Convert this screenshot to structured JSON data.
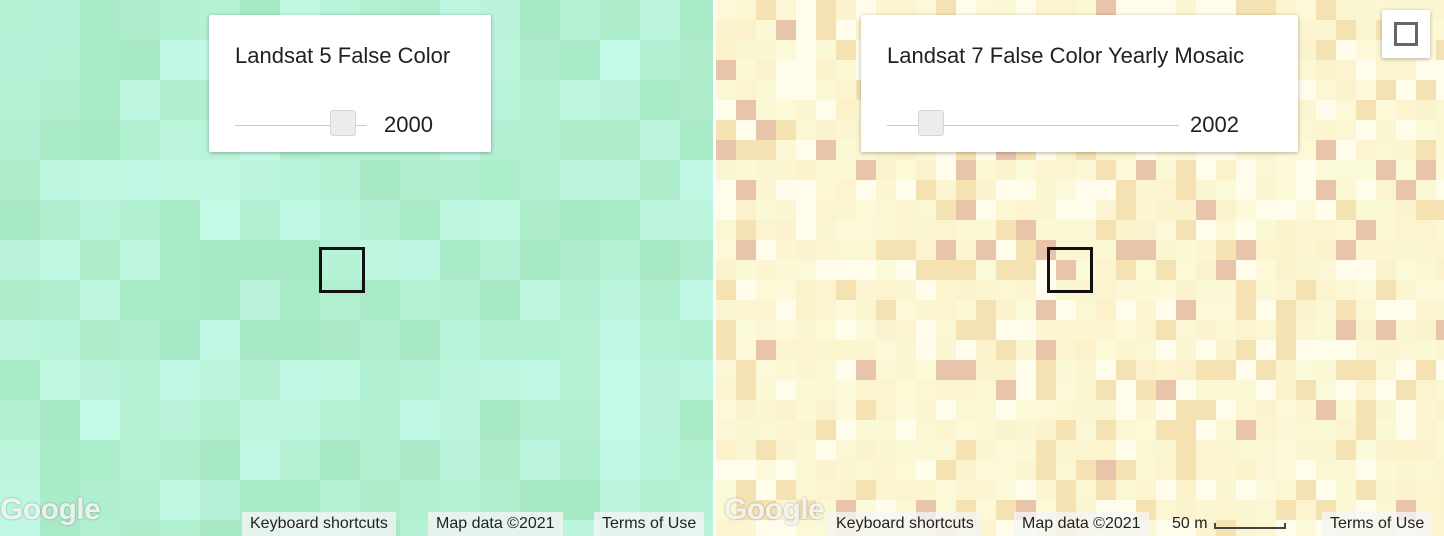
{
  "left_map": {
    "panel_title": "Landsat 5 False Color",
    "slider_value": "2000",
    "slider_fraction": 0.82,
    "base_color": "#b5f2d2",
    "google_logo": "Google",
    "attribution": {
      "keyboard_shortcuts": "Keyboard shortcuts",
      "map_data": "Map data ©2021",
      "terms": "Terms of Use"
    }
  },
  "right_map": {
    "panel_title": "Landsat 7 False Color Yearly Mosaic",
    "slider_value": "2002",
    "slider_fraction": 0.15,
    "base_color": "#fbf6cc",
    "google_logo": "Google",
    "attribution": {
      "keyboard_shortcuts": "Keyboard shortcuts",
      "map_data": "Map data ©2021",
      "scale_label": "50 m",
      "terms": "Terms of Use"
    }
  },
  "controls": {
    "fullscreen_icon": "fullscreen-icon"
  }
}
